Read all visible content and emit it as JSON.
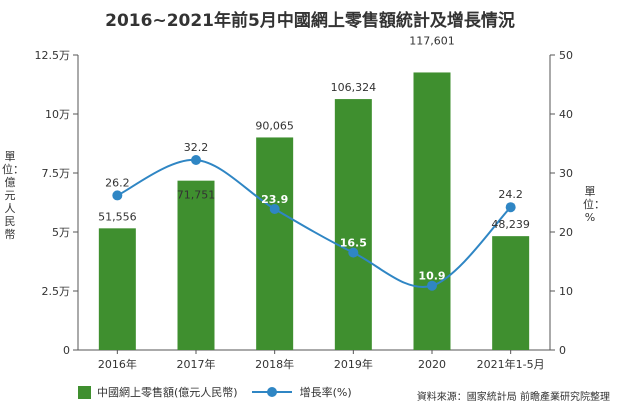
{
  "title": "2016~2021年前5月中國網上零售額統計及增長情況",
  "y_left_label": "單位：億元人民幣",
  "y_right_label": "單位：%",
  "source": "資料來源：國家統計局 前瞻產業研究院整理",
  "colors": {
    "bar": "#3f8f2f",
    "line": "#2f86c4",
    "axis": "#555555"
  },
  "chart_data": {
    "type": "bar",
    "categories": [
      "2016年",
      "2017年",
      "2018年",
      "2019年",
      "2020",
      "2021年1-5月"
    ],
    "series": [
      {
        "name": "中國網上零售額(億元人民幣)",
        "type": "bar",
        "axis": "left",
        "values": [
          51556,
          71751,
          90065,
          106324,
          117601,
          48239
        ],
        "labels": [
          "51,556",
          "71,751",
          "90,065",
          "106,324",
          "117,601",
          "48,239"
        ]
      },
      {
        "name": "增長率(%)",
        "type": "line",
        "axis": "right",
        "values": [
          26.2,
          32.2,
          23.9,
          16.5,
          10.9,
          24.2
        ],
        "labels": [
          "26.2",
          "32.2",
          "23.9",
          "16.5",
          "10.9",
          "24.2"
        ]
      }
    ],
    "y_left": {
      "min": 0,
      "max": 125000,
      "ticks": [
        0,
        25000,
        50000,
        75000,
        100000,
        125000
      ],
      "tick_labels": [
        "0",
        "2.5万",
        "5万",
        "7.5万",
        "10万",
        "12.5万"
      ]
    },
    "y_right": {
      "min": 0,
      "max": 50,
      "ticks": [
        0,
        10,
        20,
        30,
        40,
        50
      ],
      "tick_labels": [
        "0",
        "10",
        "20",
        "30",
        "40",
        "50"
      ]
    },
    "grid": false,
    "legend_position": "bottom-left"
  }
}
